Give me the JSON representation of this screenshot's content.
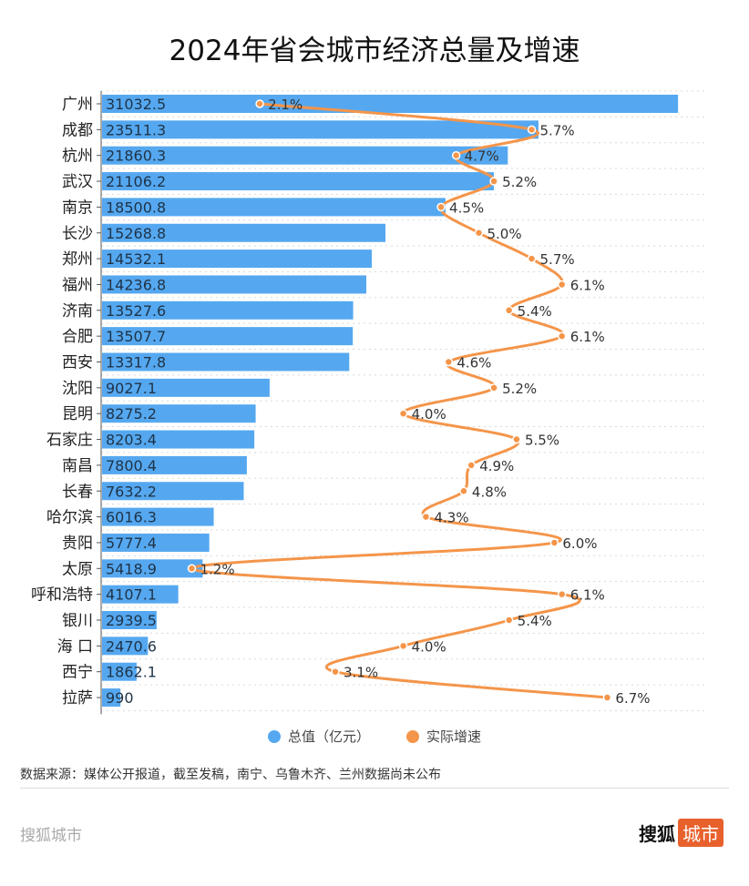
{
  "title": "2024年省会城市经济总量及增速",
  "legend": {
    "gdp": "总值（亿元）",
    "growth": "实际增速"
  },
  "colors": {
    "bar": "#55a8f0",
    "line": "#f4954a",
    "grid": "#d8d8d8",
    "brand": "#e8612c"
  },
  "source": "数据来源：媒体公开报道，截至发稿，南宁、乌鲁木齐、兰州数据尚未公布",
  "brand": {
    "left": "搜狐城市",
    "right_main": "搜狐",
    "right_tag": "城市"
  },
  "chart_data": {
    "type": "bar",
    "orientation": "horizontal",
    "title": "2024年省会城市经济总量及增速",
    "categories": [
      "广州",
      "成都",
      "杭州",
      "武汉",
      "南京",
      "长沙",
      "郑州",
      "福州",
      "济南",
      "合肥",
      "西安",
      "沈阳",
      "昆明",
      "石家庄",
      "南昌",
      "长春",
      "哈尔滨",
      "贵阳",
      "太原",
      "呼和浩特",
      "银川",
      "海 口",
      "西宁",
      "拉萨"
    ],
    "series": [
      {
        "name": "总值（亿元）",
        "type": "bar",
        "values": [
          31032.5,
          23511.3,
          21860.3,
          21106.2,
          18500.8,
          15268.8,
          14532.1,
          14236.8,
          13527.6,
          13507.7,
          13317.8,
          9027.1,
          8275.2,
          8203.4,
          7800.4,
          7632.2,
          6016.3,
          5777.4,
          5418.9,
          4107.1,
          2939.5,
          2470.6,
          1862.1,
          990
        ]
      },
      {
        "name": "实际增速",
        "type": "line",
        "unit": "%",
        "values": [
          2.1,
          5.7,
          4.7,
          5.2,
          4.5,
          5.0,
          5.7,
          6.1,
          5.4,
          6.1,
          4.6,
          5.2,
          4.0,
          5.5,
          4.9,
          4.8,
          4.3,
          6.0,
          1.2,
          6.1,
          5.4,
          4.0,
          3.1,
          6.7
        ]
      }
    ],
    "grid": true,
    "legend_position": "bottom"
  }
}
